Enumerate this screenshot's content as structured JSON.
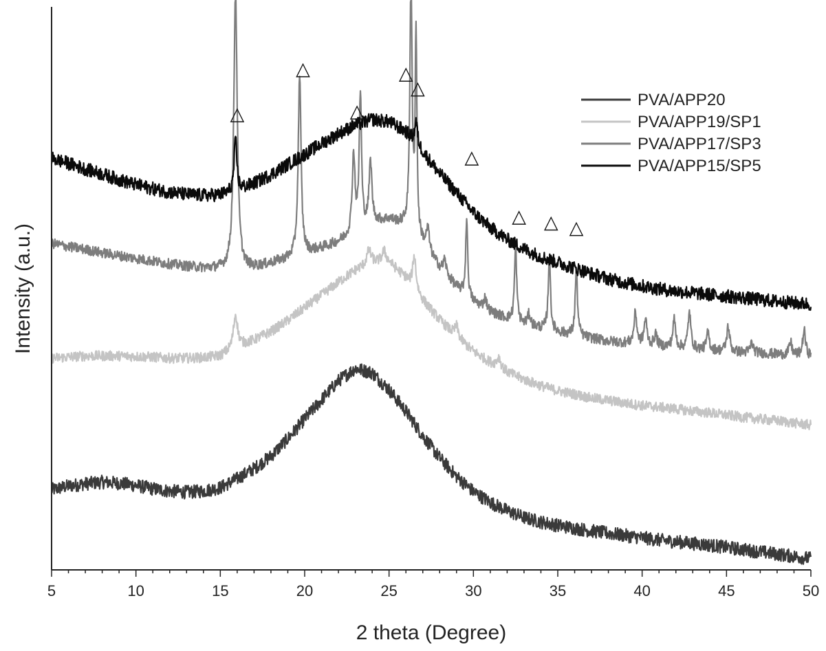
{
  "chart_data": {
    "type": "line",
    "xlabel": "2 theta (Degree)",
    "ylabel": "Intensity (a.u.)",
    "xlim": [
      5,
      50
    ],
    "ylim": [
      0,
      100
    ],
    "x_ticks": [
      "5",
      "10",
      "15",
      "20",
      "25",
      "30",
      "35",
      "40",
      "45",
      "50"
    ],
    "y_ticks_shown": false,
    "grid": false,
    "legend_position": "top-right",
    "marker_symbol": "△",
    "series": [
      {
        "name": "PVA/APP20",
        "color": "#3a3a3a",
        "noise": 1.2,
        "points": [
          [
            5,
            14.2
          ],
          [
            6,
            14.9
          ],
          [
            7,
            15.3
          ],
          [
            8,
            15.6
          ],
          [
            9,
            15.4
          ],
          [
            10,
            15.0
          ],
          [
            11,
            14.4
          ],
          [
            12,
            14.0
          ],
          [
            13,
            13.8
          ],
          [
            14,
            14.0
          ],
          [
            15,
            14.6
          ],
          [
            16,
            16.2
          ],
          [
            17,
            18.0
          ],
          [
            18,
            20.2
          ],
          [
            19,
            23.3
          ],
          [
            20,
            26.8
          ],
          [
            21,
            30.2
          ],
          [
            22,
            33.6
          ],
          [
            23,
            35.8
          ],
          [
            24,
            35.0
          ],
          [
            25,
            32.0
          ],
          [
            26,
            28.2
          ],
          [
            27,
            23.8
          ],
          [
            28,
            19.9
          ],
          [
            29,
            16.6
          ],
          [
            30,
            13.9
          ],
          [
            31,
            12.0
          ],
          [
            32,
            10.5
          ],
          [
            33,
            9.3
          ],
          [
            34,
            8.5
          ],
          [
            35,
            7.9
          ],
          [
            36,
            7.4
          ],
          [
            37,
            6.9
          ],
          [
            38,
            6.5
          ],
          [
            39,
            6.1
          ],
          [
            40,
            5.7
          ],
          [
            41,
            5.3
          ],
          [
            42,
            5.0
          ],
          [
            43,
            4.7
          ],
          [
            44,
            4.4
          ],
          [
            45,
            4.0
          ],
          [
            46,
            3.6
          ],
          [
            47,
            3.2
          ],
          [
            48,
            2.8
          ],
          [
            49,
            2.4
          ],
          [
            50,
            2.0
          ]
        ],
        "peaks": []
      },
      {
        "name": "PVA/APP19/SP1",
        "color": "#c4c4c4",
        "noise": 0.9,
        "points": [
          [
            5,
            37.6
          ],
          [
            6,
            37.8
          ],
          [
            7,
            38.0
          ],
          [
            8,
            38.0
          ],
          [
            9,
            38.0
          ],
          [
            10,
            37.9
          ],
          [
            11,
            37.8
          ],
          [
            12,
            37.6
          ],
          [
            13,
            37.6
          ],
          [
            14,
            37.7
          ],
          [
            15,
            38.0
          ],
          [
            16,
            39.5
          ],
          [
            17,
            40.8
          ],
          [
            18,
            42.3
          ],
          [
            19,
            44.3
          ],
          [
            20,
            46.6
          ],
          [
            21,
            48.8
          ],
          [
            22,
            51.1
          ],
          [
            23,
            53.2
          ],
          [
            24,
            54.6
          ],
          [
            25,
            54.6
          ],
          [
            26,
            51.8
          ],
          [
            27,
            47.8
          ],
          [
            28,
            44.4
          ],
          [
            29,
            41.4
          ],
          [
            30,
            38.8
          ],
          [
            31,
            36.8
          ],
          [
            32,
            35.1
          ],
          [
            33,
            33.8
          ],
          [
            34,
            32.7
          ],
          [
            35,
            31.8
          ],
          [
            36,
            31.2
          ],
          [
            37,
            30.5
          ],
          [
            38,
            30.1
          ],
          [
            39,
            29.6
          ],
          [
            40,
            29.2
          ],
          [
            41,
            28.9
          ],
          [
            42,
            28.6
          ],
          [
            43,
            28.2
          ],
          [
            44,
            27.9
          ],
          [
            45,
            27.5
          ],
          [
            46,
            27.1
          ],
          [
            47,
            26.8
          ],
          [
            48,
            26.5
          ],
          [
            49,
            26.1
          ],
          [
            50,
            25.7
          ]
        ],
        "peaks": [
          [
            15.9,
            6.0,
            0.15
          ],
          [
            23.8,
            2.4,
            0.15
          ],
          [
            24.7,
            2.0,
            0.15
          ],
          [
            26.5,
            6.0,
            0.12
          ],
          [
            29.0,
            2.0,
            0.12
          ],
          [
            31.5,
            1.8,
            0.15
          ]
        ]
      },
      {
        "name": "PVA/APP17/SP3",
        "color": "#7d7d7d",
        "noise": 0.9,
        "points": [
          [
            5,
            58.0
          ],
          [
            6,
            57.4
          ],
          [
            7,
            56.9
          ],
          [
            8,
            56.3
          ],
          [
            9,
            55.8
          ],
          [
            10,
            55.3
          ],
          [
            11,
            54.8
          ],
          [
            12,
            54.3
          ],
          [
            13,
            53.9
          ],
          [
            14,
            53.6
          ],
          [
            15,
            53.4
          ],
          [
            16,
            53.3
          ],
          [
            17,
            53.6
          ],
          [
            18,
            54.4
          ],
          [
            19,
            55.2
          ],
          [
            20,
            56.1
          ],
          [
            21,
            57.1
          ],
          [
            22,
            58.2
          ],
          [
            23,
            59.7
          ],
          [
            24,
            61.6
          ],
          [
            25,
            62.2
          ],
          [
            26,
            61.0
          ],
          [
            27,
            57.8
          ],
          [
            28,
            53.6
          ],
          [
            29,
            50.2
          ],
          [
            30,
            47.6
          ],
          [
            31,
            45.8
          ],
          [
            32,
            44.6
          ],
          [
            33,
            43.6
          ],
          [
            34,
            42.9
          ],
          [
            35,
            42.2
          ],
          [
            36,
            41.6
          ],
          [
            37,
            41.1
          ],
          [
            38,
            40.6
          ],
          [
            39,
            40.3
          ],
          [
            40,
            40.0
          ],
          [
            41,
            39.7
          ],
          [
            42,
            39.4
          ],
          [
            43,
            39.2
          ],
          [
            44,
            39.0
          ],
          [
            45,
            38.8
          ],
          [
            46,
            38.6
          ],
          [
            47,
            38.5
          ],
          [
            48,
            38.3
          ],
          [
            49,
            38.1
          ],
          [
            50,
            38.0
          ]
        ],
        "peaks": [
          [
            15.9,
            50.0,
            0.12
          ],
          [
            19.7,
            32.0,
            0.1
          ],
          [
            22.9,
            14.0,
            0.1
          ],
          [
            23.3,
            24.0,
            0.08
          ],
          [
            23.9,
            11.0,
            0.1
          ],
          [
            26.3,
            44.0,
            0.08
          ],
          [
            26.6,
            36.0,
            0.06
          ],
          [
            27.3,
            4.0,
            0.1
          ],
          [
            28.3,
            2.5,
            0.1
          ],
          [
            29.6,
            14.0,
            0.07
          ],
          [
            30.7,
            2.0,
            0.1
          ],
          [
            32.5,
            13.0,
            0.08
          ],
          [
            33.3,
            2.0,
            0.1
          ],
          [
            34.5,
            13.0,
            0.08
          ],
          [
            36.1,
            12.0,
            0.08
          ],
          [
            39.6,
            5.5,
            0.1
          ],
          [
            40.2,
            4.5,
            0.1
          ],
          [
            40.8,
            2.0,
            0.1
          ],
          [
            41.9,
            5.0,
            0.1
          ],
          [
            42.8,
            6.5,
            0.1
          ],
          [
            43.9,
            3.0,
            0.1
          ],
          [
            45.1,
            4.5,
            0.1
          ],
          [
            46.5,
            1.8,
            0.1
          ],
          [
            48.8,
            2.2,
            0.1
          ],
          [
            49.6,
            4.5,
            0.1
          ]
        ]
      },
      {
        "name": "PVA/APP15/SP5",
        "color": "#0a0a0a",
        "noise": 1.2,
        "points": [
          [
            5,
            73.1
          ],
          [
            6,
            72.2
          ],
          [
            7,
            71.2
          ],
          [
            8,
            70.3
          ],
          [
            9,
            69.3
          ],
          [
            10,
            68.4
          ],
          [
            11,
            67.7
          ],
          [
            12,
            67.1
          ],
          [
            13,
            66.7
          ],
          [
            14,
            66.5
          ],
          [
            15,
            66.6
          ],
          [
            16,
            67.3
          ],
          [
            17,
            68.6
          ],
          [
            18,
            70.2
          ],
          [
            19,
            72.0
          ],
          [
            20,
            73.8
          ],
          [
            21,
            75.7
          ],
          [
            22,
            77.5
          ],
          [
            23,
            79.0
          ],
          [
            24,
            80.0
          ],
          [
            25,
            79.6
          ],
          [
            26,
            77.8
          ],
          [
            27,
            74.2
          ],
          [
            28,
            70.4
          ],
          [
            29,
            67.0
          ],
          [
            30,
            63.5
          ],
          [
            31,
            60.8
          ],
          [
            32,
            58.7
          ],
          [
            33,
            57.0
          ],
          [
            34,
            55.6
          ],
          [
            35,
            54.6
          ],
          [
            36,
            53.6
          ],
          [
            37,
            52.6
          ],
          [
            38,
            51.7
          ],
          [
            39,
            51.0
          ],
          [
            40,
            50.4
          ],
          [
            41,
            49.9
          ],
          [
            42,
            49.5
          ],
          [
            43,
            49.2
          ],
          [
            44,
            48.9
          ],
          [
            45,
            48.6
          ],
          [
            46,
            48.3
          ],
          [
            47,
            48.0
          ],
          [
            48,
            47.7
          ],
          [
            49,
            47.4
          ],
          [
            50,
            47.2
          ]
        ],
        "peaks": [
          [
            15.9,
            9.0,
            0.1
          ],
          [
            26.6,
            4.0,
            0.1
          ]
        ]
      }
    ],
    "annotations": [
      {
        "x": 16.0,
        "y": 81.0
      },
      {
        "x": 19.9,
        "y": 89.0
      },
      {
        "x": 23.1,
        "y": 81.5
      },
      {
        "x": 26.0,
        "y": 88.2
      },
      {
        "x": 26.7,
        "y": 85.6
      },
      {
        "x": 29.9,
        "y": 73.3
      },
      {
        "x": 32.7,
        "y": 62.8
      },
      {
        "x": 34.6,
        "y": 61.8
      },
      {
        "x": 36.1,
        "y": 60.8
      }
    ]
  }
}
